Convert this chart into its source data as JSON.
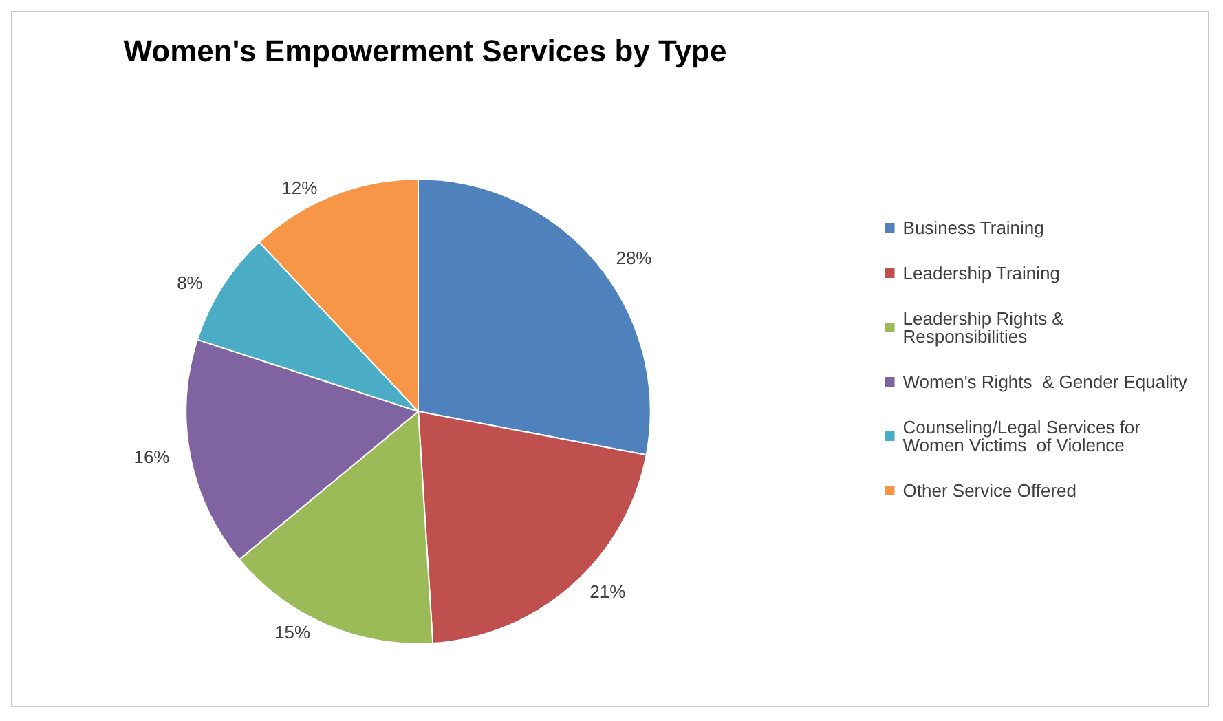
{
  "chart_data": {
    "type": "pie",
    "title": "Women's Empowerment Services by Type",
    "categories": [
      "Business Training",
      "Leadership Training",
      "Leadership Rights & Responsibilities",
      "Women's Rights  & Gender Equality",
      "Counseling/Legal Services for Women Victims  of Violence",
      "Other Service Offered"
    ],
    "values": [
      28,
      21,
      15,
      16,
      8,
      12
    ],
    "value_labels": [
      "28%",
      "21%",
      "15%",
      "16%",
      "8%",
      "12%"
    ],
    "colors": [
      "#4f81bd",
      "#c0504d",
      "#9bbb59",
      "#8064a2",
      "#4bacc6",
      "#f79646"
    ],
    "legend": "right"
  }
}
